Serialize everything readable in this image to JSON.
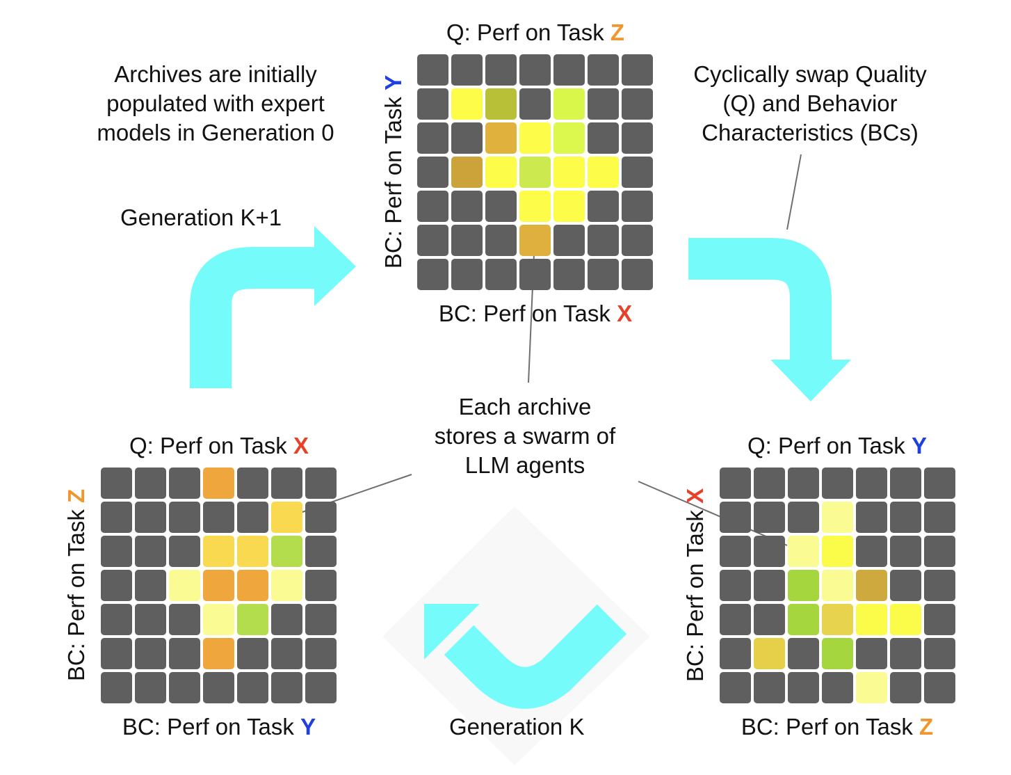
{
  "colors": {
    "task_x": "#e8412a",
    "task_y": "#1f3fe0",
    "task_z": "#f0962c",
    "arrow": "#76fbfb",
    "cell_empty": "#5f5f5f"
  },
  "notes": {
    "archives_initial": [
      "Archives are initially",
      "populated with expert",
      "models in Generation 0"
    ],
    "cyclic_swap": [
      "Cyclically swap Quality",
      "(Q) and Behavior",
      "Characteristics (BCs)"
    ],
    "swarm": [
      "Each archive",
      "stores a swarm of",
      "LLM agents"
    ],
    "gen_k1": "Generation K+1",
    "gen_k": "Generation K"
  },
  "archives": {
    "top": {
      "q_prefix": "Q: Perf on Task ",
      "q_task": "Z",
      "bc_x_prefix": "BC: Perf on Task ",
      "bc_x_task": "X",
      "bc_y_prefix": "BC: Perf on Task ",
      "bc_y_task": "Y",
      "cells": [
        [
          "",
          "",
          "",
          "",
          "",
          "",
          ""
        ],
        [
          "",
          "#fdfc49",
          "#b7c037",
          "",
          "#d9f64a",
          "",
          ""
        ],
        [
          "",
          "",
          "#e0b23d",
          "#fdfc49",
          "#dcf84e",
          "",
          ""
        ],
        [
          "",
          "#cca33a",
          "#fdfc49",
          "#cde950",
          "#fdfc49",
          "#fdfc49",
          ""
        ],
        [
          "",
          "",
          "",
          "#fdfc49",
          "#fdfc49",
          "",
          ""
        ],
        [
          "",
          "",
          "",
          "#e0b03e",
          "",
          "",
          ""
        ],
        [
          "",
          "",
          "",
          "",
          "",
          "",
          ""
        ]
      ]
    },
    "left": {
      "q_prefix": "Q: Perf on Task ",
      "q_task": "X",
      "bc_x_prefix": "BC: Perf on Task ",
      "bc_x_task": "Y",
      "bc_y_prefix": "BC: Perf on Task ",
      "bc_y_task": "Z",
      "cells": [
        [
          "",
          "",
          "",
          "#efa63c",
          "",
          "",
          ""
        ],
        [
          "",
          "",
          "",
          "",
          "",
          "#f8d950",
          ""
        ],
        [
          "",
          "",
          "",
          "#f8d950",
          "#f8d950",
          "#b3dd4c",
          ""
        ],
        [
          "",
          "",
          "#fbfb93",
          "#efa63c",
          "#efa63c",
          "#fbfb93",
          ""
        ],
        [
          "",
          "",
          "",
          "#fbfb93",
          "#b3dd4c",
          "",
          ""
        ],
        [
          "",
          "",
          "",
          "#efa63c",
          "",
          "",
          ""
        ],
        [
          "",
          "",
          "",
          "",
          "",
          "",
          ""
        ]
      ]
    },
    "right": {
      "q_prefix": "Q: Perf on Task ",
      "q_task": "Y",
      "bc_x_prefix": "BC: Perf on Task ",
      "bc_x_task": "Z",
      "bc_y_prefix": "BC: Perf on Task ",
      "bc_y_task": "X",
      "cells": [
        [
          "",
          "",
          "",
          "",
          "",
          "",
          ""
        ],
        [
          "",
          "",
          "",
          "#fbfb93",
          "",
          "",
          ""
        ],
        [
          "",
          "",
          "#fbfb93",
          "#fbfb4a",
          "",
          "",
          ""
        ],
        [
          "",
          "",
          "#a6d63e",
          "#fbfb93",
          "#ceaa3e",
          "",
          ""
        ],
        [
          "",
          "",
          "#a6d63e",
          "#e7d34e",
          "#fbfb4a",
          "#fbfb4a",
          ""
        ],
        [
          "",
          "#e6d04a",
          "",
          "#a6d63e",
          "",
          "",
          ""
        ],
        [
          "",
          "",
          "",
          "",
          "#fbfb93",
          "",
          ""
        ]
      ]
    }
  }
}
